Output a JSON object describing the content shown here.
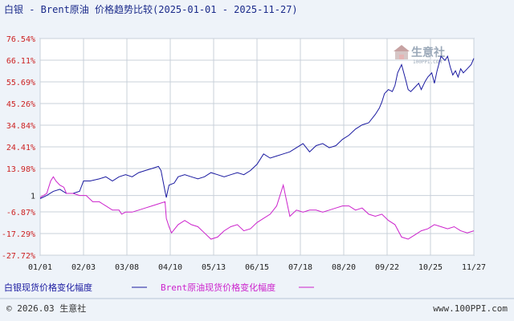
{
  "chart_data": {
    "type": "line",
    "title": "白银 - Brent原油 价格趋势比较(2025-01-01 - 2025-11-27)",
    "ytick_labels": [
      "76.54%",
      "66.11%",
      "55.69%",
      "45.26%",
      "34.84%",
      "24.41%",
      "13.98%",
      "1",
      "-6.87%",
      "-17.29%",
      "-27.72%"
    ],
    "ytick_values": [
      76.54,
      66.11,
      55.69,
      45.26,
      34.84,
      24.41,
      13.98,
      1,
      -6.87,
      -17.29,
      -27.72
    ],
    "ylim": [
      -27.72,
      76.54
    ],
    "xtick_labels": [
      "01/01",
      "02/03",
      "03/08",
      "04/10",
      "05/13",
      "06/15",
      "07/18",
      "08/20",
      "09/22",
      "10/25",
      "11/27"
    ],
    "x_range_days": [
      0,
      330
    ],
    "grid": true,
    "series": [
      {
        "name": "白银现货价格变化幅度",
        "color": "#1a1aa0",
        "x": [
          0,
          5,
          10,
          15,
          20,
          25,
          30,
          33,
          38,
          45,
          50,
          55,
          60,
          65,
          70,
          75,
          80,
          85,
          90,
          92,
          95,
          96,
          98,
          102,
          105,
          110,
          115,
          120,
          125,
          130,
          135,
          140,
          145,
          150,
          155,
          160,
          165,
          170,
          175,
          180,
          185,
          190,
          195,
          200,
          205,
          210,
          215,
          220,
          225,
          230,
          235,
          240,
          245,
          250,
          255,
          258,
          260,
          262,
          265,
          268,
          270,
          272,
          275,
          278,
          280,
          282,
          285,
          288,
          290,
          293,
          295,
          298,
          300,
          302,
          305,
          308,
          310,
          312,
          314,
          316,
          318,
          320,
          322,
          325,
          328,
          330
        ],
        "y": [
          -0.5,
          1,
          3,
          4,
          2,
          2,
          3,
          8,
          8,
          9,
          10,
          8,
          10,
          11,
          10,
          12,
          13,
          14,
          15,
          13,
          3,
          0,
          6,
          7,
          10,
          11,
          10,
          9,
          10,
          12,
          11,
          10,
          11,
          12,
          11,
          13,
          16,
          21,
          19,
          20,
          21,
          22,
          24,
          26,
          22,
          25,
          26,
          24,
          25,
          28,
          30,
          33,
          35,
          36,
          40,
          43,
          46,
          50,
          52,
          51,
          54,
          60,
          64,
          57,
          52,
          51,
          53,
          55,
          52,
          56,
          58,
          60,
          55,
          61,
          68,
          66,
          68,
          63,
          59,
          61,
          58,
          62,
          60,
          62,
          64,
          67
        ]
      },
      {
        "name": "Brent原油现货价格变化幅度",
        "color": "#cc22cc",
        "x": [
          0,
          5,
          8,
          10,
          12,
          15,
          18,
          20,
          25,
          30,
          35,
          40,
          45,
          50,
          55,
          60,
          62,
          65,
          70,
          75,
          80,
          85,
          90,
          95,
          96,
          98,
          100,
          105,
          110,
          115,
          120,
          125,
          130,
          135,
          140,
          145,
          150,
          155,
          160,
          165,
          170,
          175,
          180,
          185,
          190,
          195,
          200,
          205,
          210,
          215,
          220,
          225,
          230,
          235,
          240,
          245,
          250,
          255,
          260,
          265,
          270,
          275,
          280,
          285,
          290,
          295,
          300,
          305,
          310,
          315,
          320,
          325,
          330
        ],
        "y": [
          0,
          2,
          8,
          10,
          8,
          6,
          5,
          2,
          2,
          1,
          1,
          -2,
          -2,
          -4,
          -6,
          -6,
          -8,
          -7,
          -7,
          -6,
          -5,
          -4,
          -3,
          -2,
          -10,
          -14,
          -17,
          -13,
          -11,
          -13,
          -14,
          -17,
          -20,
          -19,
          -16,
          -14,
          -13,
          -16,
          -15,
          -12,
          -10,
          -8,
          -4,
          6,
          -9,
          -6,
          -7,
          -6,
          -6,
          -7,
          -6,
          -5,
          -4,
          -4,
          -6,
          -5,
          -8,
          -9,
          -8,
          -11,
          -13,
          -19,
          -20,
          -18,
          -16,
          -15,
          -13,
          -14,
          -15,
          -14,
          -16,
          -17,
          -16
        ]
      }
    ]
  },
  "footer": {
    "copyright": "© 2026.03 生意社",
    "url": "www.100PPI.com"
  },
  "watermark": {
    "brand": "生意社",
    "sub": "100PPI.COM"
  }
}
